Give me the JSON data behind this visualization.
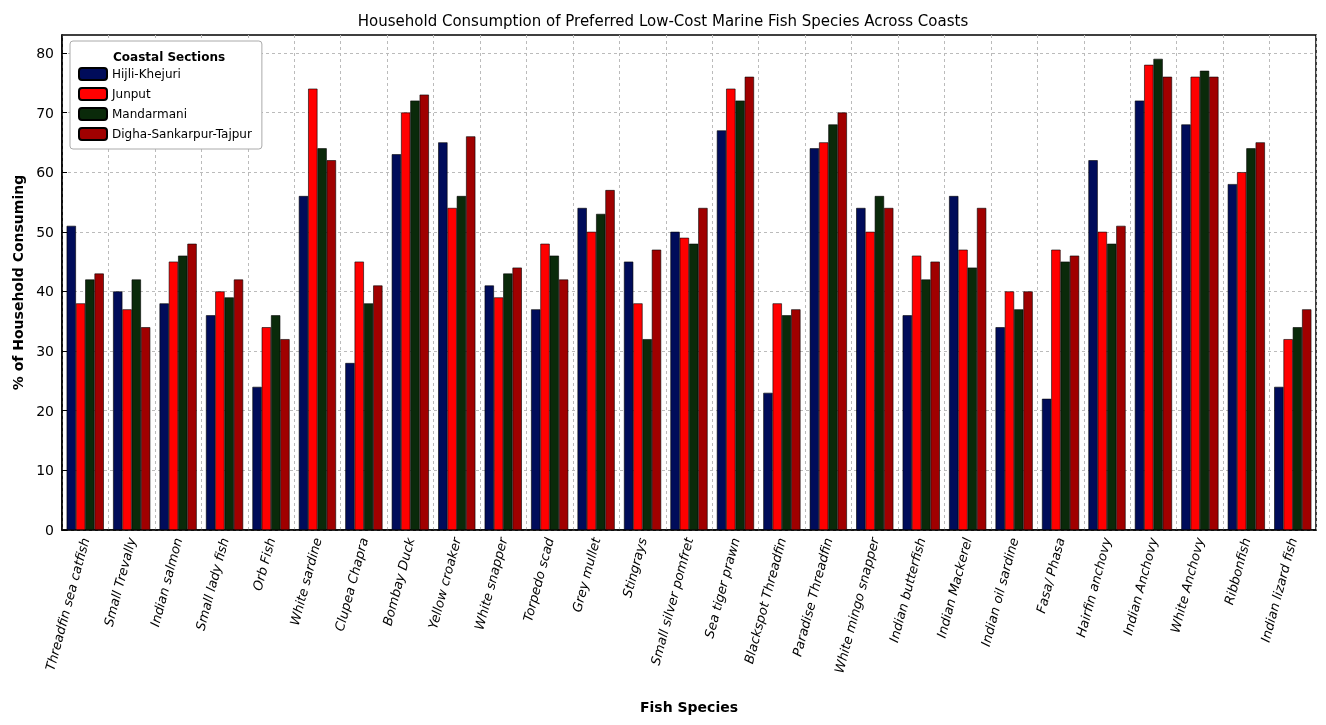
{
  "chart_data": {
    "type": "bar",
    "title": "Household Consumption of Preferred Low-Cost Marine Fish Species Across Coasts",
    "xlabel": "Fish Species",
    "ylabel": "% of Household Consuming",
    "legend_title": "Coastal Sections",
    "categories": [
      "Threadfin sea catfish",
      "Small Trevally",
      "Indian salmon",
      "Small lady fish",
      "Orb Fish",
      "White sardine",
      "Clupea Chapra",
      "Bombay Duck",
      "Yellow croaker",
      "White snapper",
      "Torpedo scad",
      "Grey mullet",
      "Stingrays",
      "Small silver pomfret",
      "Sea tiger prawn",
      "Blackspot Threadfin",
      "Paradise Threadfin",
      "White mingo snapper",
      "Indian butterfish",
      "Indian Mackerel",
      "Indian oil sardine",
      "Fasa/ Phasa",
      "Hairfin anchovy",
      "Indian Anchovy",
      "White Anchovy",
      "Ribbonfish",
      "Indian lizard fish"
    ],
    "series": [
      {
        "name": "Hijli-Khejuri",
        "color": "#000c5a",
        "values": [
          51,
          40,
          38,
          36,
          24,
          56,
          28,
          63,
          65,
          41,
          37,
          54,
          45,
          50,
          67,
          23,
          64,
          54,
          36,
          56,
          34,
          22,
          62,
          72,
          68,
          58,
          24
        ]
      },
      {
        "name": "Junput",
        "color": "#ff0000",
        "values": [
          38,
          37,
          45,
          40,
          34,
          74,
          45,
          70,
          54,
          39,
          48,
          50,
          38,
          49,
          74,
          38,
          65,
          50,
          46,
          47,
          40,
          47,
          50,
          78,
          76,
          60,
          32
        ]
      },
      {
        "name": "Mandarmani",
        "color": "#0a2a0a",
        "values": [
          42,
          42,
          46,
          39,
          36,
          64,
          38,
          72,
          56,
          43,
          46,
          53,
          32,
          48,
          72,
          36,
          68,
          56,
          42,
          44,
          37,
          45,
          48,
          79,
          77,
          64,
          34
        ]
      },
      {
        "name": "Digha-Sankarpur-Tajpur",
        "color": "#a00000",
        "values": [
          43,
          34,
          48,
          42,
          32,
          62,
          41,
          73,
          66,
          44,
          42,
          57,
          47,
          54,
          76,
          37,
          70,
          54,
          45,
          54,
          40,
          46,
          51,
          76,
          76,
          65,
          37
        ]
      }
    ],
    "ylim": [
      0,
      83
    ],
    "yticks": [
      0,
      10,
      20,
      30,
      40,
      50,
      60,
      70,
      80
    ],
    "grid": true,
    "legend": "top left"
  }
}
